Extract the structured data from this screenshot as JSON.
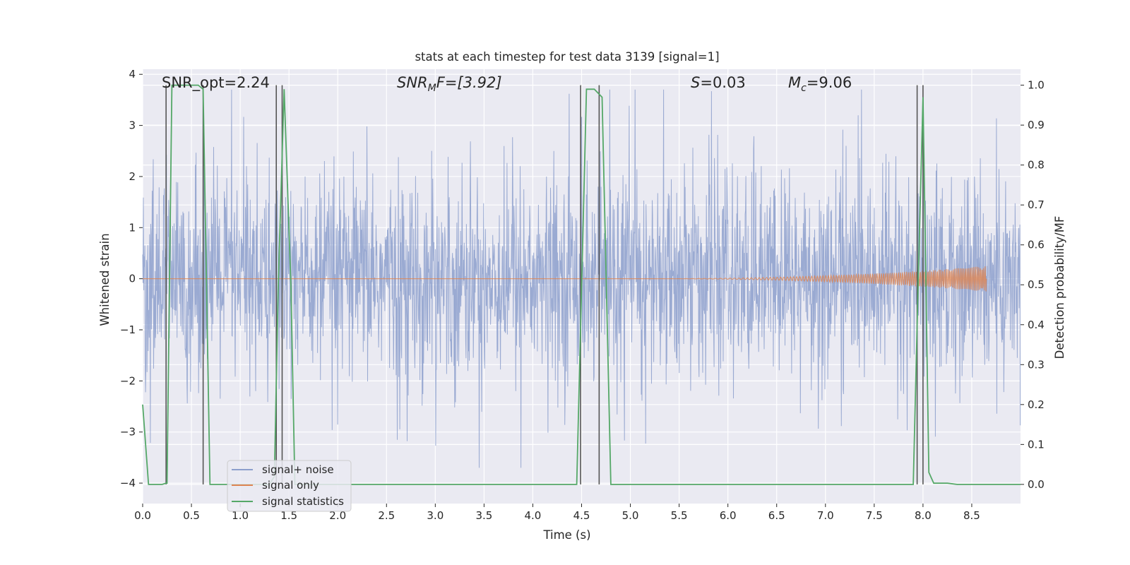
{
  "chart_data": {
    "type": "line",
    "title": "stats at each timestep for test data 3139 [signal=1]",
    "xlabel": "Time (s)",
    "ylabel_left": "Whitened strain",
    "ylabel_right": "Detection probability/MF",
    "xlim": [
      0.0,
      9.0
    ],
    "ylim_left": [
      -4.4,
      4.1
    ],
    "ylim_right": [
      -0.048,
      1.04
    ],
    "x_ticks": [
      "0.0",
      "0.5",
      "1.0",
      "1.5",
      "2.0",
      "2.5",
      "3.0",
      "3.5",
      "4.0",
      "4.5",
      "5.0",
      "5.5",
      "6.0",
      "6.5",
      "7.0",
      "7.5",
      "8.0",
      "8.5"
    ],
    "x_tick_values": [
      0,
      0.5,
      1,
      1.5,
      2,
      2.5,
      3,
      3.5,
      4,
      4.5,
      5,
      5.5,
      6,
      6.5,
      7,
      7.5,
      8,
      8.5
    ],
    "yl_ticks": [
      "−4",
      "−3",
      "−2",
      "−1",
      "0",
      "1",
      "2",
      "3",
      "4"
    ],
    "yl_tick_values": [
      -4,
      -3,
      -2,
      -1,
      0,
      1,
      2,
      3,
      4
    ],
    "yr_ticks": [
      "0.0",
      "0.1",
      "0.2",
      "0.3",
      "0.4",
      "0.5",
      "0.6",
      "0.7",
      "0.8",
      "0.9",
      "1.0"
    ],
    "yr_tick_values": [
      0,
      0.1,
      0.2,
      0.3,
      0.4,
      0.5,
      0.6,
      0.7,
      0.8,
      0.9,
      1.0
    ],
    "annotations": {
      "snr_opt": "SNR_opt=2.24",
      "snr_mf_main": "SNR",
      "snr_mf_sub": "M",
      "snr_mf_rest": "F=[3.92]",
      "s_italic": "S",
      "s_rest": "=0.03",
      "mc_main": "M",
      "mc_sub": "c",
      "mc_rest": "=9.06"
    },
    "legend": {
      "position": "lower-left",
      "entries": [
        {
          "label": "signal+ noise",
          "color": "#8c9fcc"
        },
        {
          "label": "signal only",
          "color": "#dd8452"
        },
        {
          "label": "signal statistics",
          "color": "#55a868"
        }
      ]
    },
    "series": [
      {
        "name": "signal+ noise",
        "color": "#8c9fcc",
        "description_range": "approx. ±2 baseline with spikes to ±3.7",
        "envelope_min": -3.7,
        "envelope_max": 3.7
      },
      {
        "name": "signal only",
        "color": "#dd8452",
        "chirp_start": 5.2,
        "chirp_end": 8.65,
        "chirp_peak_amplitude": 0.25
      },
      {
        "name": "signal statistics",
        "color": "#55a868",
        "x": [
          0.0,
          0.06,
          0.1,
          0.2,
          0.24,
          0.25,
          0.3,
          0.4,
          0.5,
          0.57,
          0.62,
          0.69,
          0.8,
          1.0,
          1.3,
          1.35,
          1.39,
          1.45,
          1.52,
          1.56,
          1.6,
          2.0,
          3.0,
          4.0,
          4.45,
          4.55,
          4.63,
          4.71,
          4.8,
          4.85,
          4.95,
          5.5,
          6.0,
          7.0,
          7.5,
          7.9,
          7.95,
          8.0,
          8.06,
          8.11,
          8.15,
          8.25,
          8.35,
          8.5,
          9.0
        ],
        "y": [
          0.2,
          0.0,
          0.0,
          0.0,
          0.003,
          0.003,
          1.0,
          1.0,
          1.0,
          1.0,
          0.99,
          0.0,
          0.0,
          0.0,
          0.0,
          0.02,
          0.5,
          0.99,
          0.5,
          0.0,
          0.0,
          0.0,
          0.0,
          0.0,
          0.0,
          0.99,
          0.99,
          0.97,
          0.0,
          0.0,
          0.0,
          0.0,
          0.0,
          0.0,
          0.0,
          0.0,
          0.5,
          0.97,
          0.03,
          0.003,
          0.003,
          0.003,
          0.0,
          0.0,
          0.0
        ]
      }
    ],
    "vertical_markers": [
      0.24,
      0.62,
      1.37,
      1.43,
      4.49,
      4.68,
      7.94,
      8.0
    ]
  }
}
